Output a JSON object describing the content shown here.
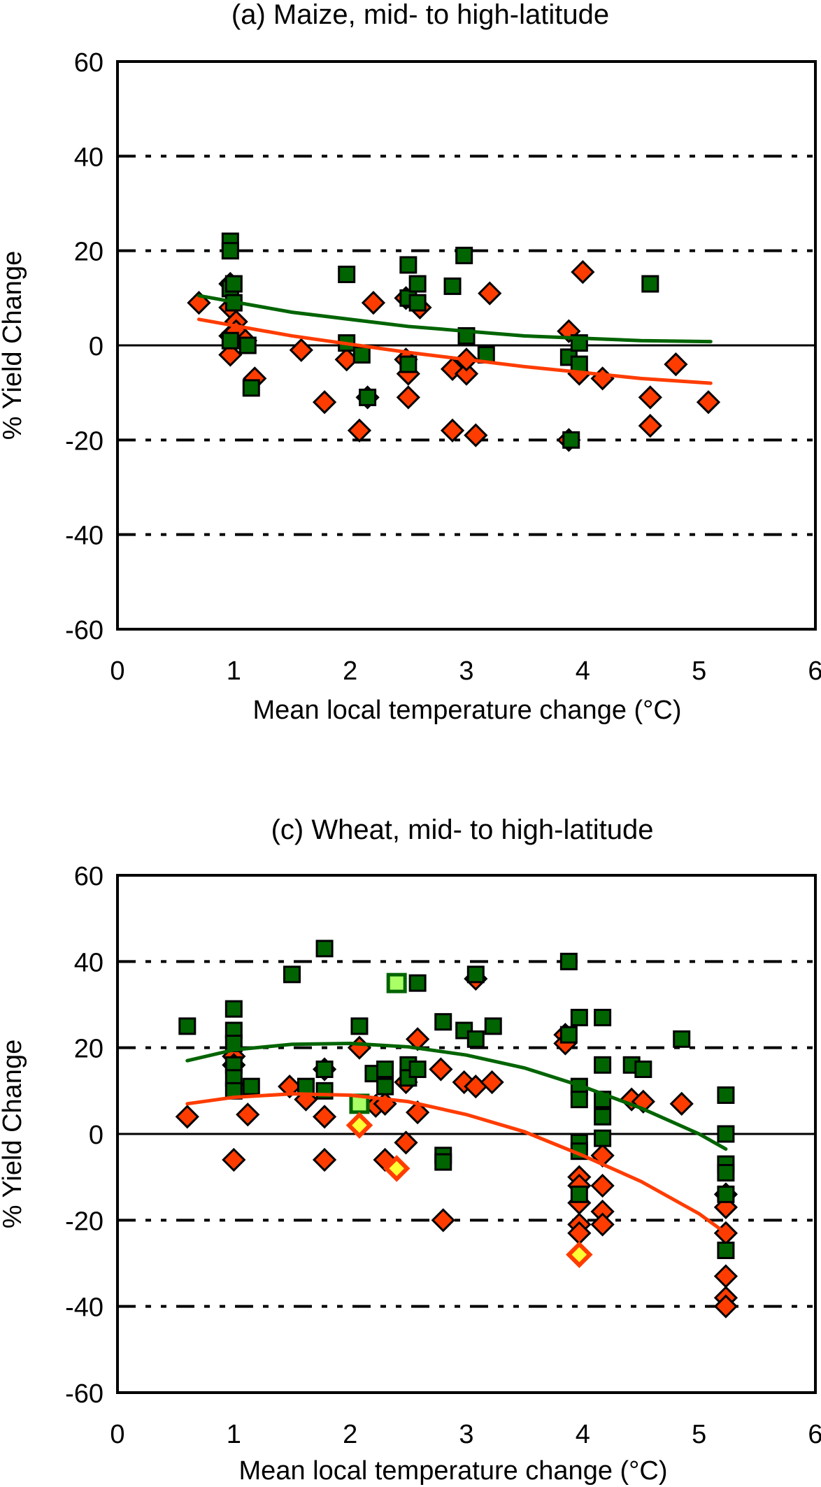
{
  "colors": {
    "optimal_fill": "#FF3C00",
    "adapted_fill": "#006400",
    "marker_stroke": "#000000",
    "highlight_square_fill": "#AAFF66",
    "highlight_square_stroke": "#006400",
    "highlight_diamond_fill": "#FFFF33",
    "highlight_diamond_stroke": "#FF3C00",
    "fit_no_adapt": "#FF3C00",
    "fit_adapt": "#006400"
  },
  "chart_data": [
    {
      "type": "scatter",
      "title": "(a) Maize, mid- to high-latitude",
      "xlabel": "Mean local temperature change (°C)",
      "ylabel": "% Yield Change",
      "xlim": [
        0,
        6
      ],
      "ylim": [
        -60,
        60
      ],
      "xticks": [
        "0",
        "1",
        "2",
        "3",
        "4",
        "5",
        "6"
      ],
      "yticks": [
        "60",
        "40",
        "20",
        "0",
        "-20",
        "-40",
        "-60"
      ],
      "gridlines_dashdot_y": [
        40,
        20,
        -20,
        -40
      ],
      "zero_line": 0,
      "series": [
        {
          "name": "diamonds (no adaptation)",
          "marker": "diamond",
          "points": [
            [
              0.7,
              9
            ],
            [
              0.97,
              13
            ],
            [
              0.97,
              8
            ],
            [
              0.97,
              2
            ],
            [
              0.97,
              -2
            ],
            [
              1.02,
              5
            ],
            [
              1.02,
              3
            ],
            [
              1.1,
              1
            ],
            [
              1.18,
              -7
            ],
            [
              1.58,
              -1
            ],
            [
              1.78,
              -12
            ],
            [
              1.97,
              -3
            ],
            [
              2.08,
              -18
            ],
            [
              2.2,
              9
            ],
            [
              2.15,
              -11
            ],
            [
              2.48,
              10
            ],
            [
              2.48,
              -3
            ],
            [
              2.5,
              -6
            ],
            [
              2.5,
              -11
            ],
            [
              2.6,
              8
            ],
            [
              2.88,
              -5
            ],
            [
              2.88,
              -18
            ],
            [
              3.0,
              -6
            ],
            [
              3.0,
              -3
            ],
            [
              3.08,
              -19
            ],
            [
              3.2,
              11
            ],
            [
              3.88,
              3
            ],
            [
              3.88,
              -20
            ],
            [
              3.97,
              -6
            ],
            [
              4.0,
              15.5
            ],
            [
              4.17,
              -7
            ],
            [
              4.58,
              -11
            ],
            [
              4.58,
              -17
            ],
            [
              4.8,
              -4
            ],
            [
              5.08,
              -12
            ]
          ]
        },
        {
          "name": "squares (with adaptation)",
          "marker": "square",
          "points": [
            [
              0.97,
              22
            ],
            [
              0.97,
              20
            ],
            [
              0.97,
              12
            ],
            [
              1.0,
              13
            ],
            [
              1.0,
              9
            ],
            [
              0.97,
              1
            ],
            [
              1.12,
              0
            ],
            [
              1.15,
              -9
            ],
            [
              1.97,
              15
            ],
            [
              1.97,
              0.5
            ],
            [
              2.1,
              -2
            ],
            [
              2.15,
              -11
            ],
            [
              2.5,
              17
            ],
            [
              2.5,
              10
            ],
            [
              2.5,
              -4
            ],
            [
              2.58,
              13
            ],
            [
              2.58,
              9
            ],
            [
              2.88,
              12.5
            ],
            [
              2.98,
              19
            ],
            [
              3.0,
              2
            ],
            [
              3.17,
              -2
            ],
            [
              3.88,
              -2.5
            ],
            [
              3.9,
              -20
            ],
            [
              3.97,
              0.5
            ],
            [
              3.97,
              -4
            ],
            [
              4.58,
              13
            ]
          ]
        }
      ],
      "fits": [
        {
          "name": "fit no adaptation",
          "x": [
            0.7,
            1.5,
            2.5,
            3.5,
            4.5,
            5.1
          ],
          "y": [
            5.5,
            2,
            -1.5,
            -4.5,
            -7,
            -8
          ]
        },
        {
          "name": "fit with adaptation",
          "x": [
            0.7,
            1.5,
            2.5,
            3.5,
            4.5,
            5.1
          ],
          "y": [
            10.5,
            7,
            4,
            2,
            1,
            0.8
          ]
        }
      ]
    },
    {
      "type": "scatter",
      "title": "(c) Wheat, mid- to high-latitude",
      "xlabel": "Mean local temperature change (°C)",
      "ylabel": "% Yield Change",
      "xlim": [
        0,
        6
      ],
      "ylim": [
        -60,
        60
      ],
      "xticks": [
        "0",
        "1",
        "2",
        "3",
        "4",
        "5",
        "6"
      ],
      "yticks": [
        "60",
        "40",
        "20",
        "0",
        "-20",
        "-40",
        "-60"
      ],
      "gridlines_dashdot_y": [
        40,
        20,
        -20,
        -40
      ],
      "zero_line": 0,
      "series": [
        {
          "name": "diamonds (no adaptation)",
          "marker": "diamond",
          "points": [
            [
              0.6,
              4
            ],
            [
              1.0,
              18
            ],
            [
              1.0,
              16
            ],
            [
              1.0,
              -6
            ],
            [
              1.12,
              4.5
            ],
            [
              1.48,
              11
            ],
            [
              1.62,
              8
            ],
            [
              1.78,
              15
            ],
            [
              1.78,
              4
            ],
            [
              1.78,
              -6
            ],
            [
              2.08,
              20
            ],
            [
              2.22,
              6.5
            ],
            [
              2.3,
              -6
            ],
            [
              2.3,
              7
            ],
            [
              2.48,
              12
            ],
            [
              2.48,
              -2
            ],
            [
              2.58,
              22
            ],
            [
              2.58,
              5
            ],
            [
              2.78,
              15
            ],
            [
              2.8,
              -20
            ],
            [
              2.98,
              12
            ],
            [
              3.08,
              36
            ],
            [
              3.08,
              11
            ],
            [
              3.22,
              12
            ],
            [
              3.85,
              23
            ],
            [
              3.85,
              21
            ],
            [
              3.97,
              -10
            ],
            [
              3.97,
              -12
            ],
            [
              3.97,
              -16
            ],
            [
              3.97,
              -21
            ],
            [
              3.97,
              -23
            ],
            [
              4.17,
              -5
            ],
            [
              4.17,
              -12
            ],
            [
              4.17,
              -18
            ],
            [
              4.17,
              -21
            ],
            [
              4.42,
              8
            ],
            [
              4.52,
              7.5
            ],
            [
              4.85,
              7
            ],
            [
              5.23,
              -14
            ],
            [
              5.23,
              -17
            ],
            [
              5.23,
              -23
            ],
            [
              5.23,
              -33
            ],
            [
              5.23,
              -38
            ],
            [
              5.23,
              -40
            ]
          ]
        },
        {
          "name": "squares (with adaptation)",
          "marker": "square",
          "points": [
            [
              0.6,
              25
            ],
            [
              1.0,
              29
            ],
            [
              1.0,
              24
            ],
            [
              1.0,
              21
            ],
            [
              1.0,
              16
            ],
            [
              1.0,
              13
            ],
            [
              1.0,
              10
            ],
            [
              1.15,
              11
            ],
            [
              1.5,
              37
            ],
            [
              1.62,
              11
            ],
            [
              1.78,
              43
            ],
            [
              1.78,
              15
            ],
            [
              1.78,
              10
            ],
            [
              2.08,
              25
            ],
            [
              2.2,
              14
            ],
            [
              2.3,
              11
            ],
            [
              2.3,
              15
            ],
            [
              2.5,
              16
            ],
            [
              2.5,
              13
            ],
            [
              2.58,
              35
            ],
            [
              2.58,
              15
            ],
            [
              2.8,
              26
            ],
            [
              2.8,
              -5
            ],
            [
              2.8,
              -6.5
            ],
            [
              2.98,
              24
            ],
            [
              3.08,
              37
            ],
            [
              3.08,
              22
            ],
            [
              3.23,
              25
            ],
            [
              3.88,
              40
            ],
            [
              3.88,
              23
            ],
            [
              3.97,
              27
            ],
            [
              3.97,
              11
            ],
            [
              3.97,
              8
            ],
            [
              3.97,
              -2
            ],
            [
              3.97,
              -4
            ],
            [
              3.97,
              -14
            ],
            [
              4.17,
              27
            ],
            [
              4.17,
              16
            ],
            [
              4.17,
              8
            ],
            [
              4.17,
              4
            ],
            [
              4.17,
              -1
            ],
            [
              4.42,
              16
            ],
            [
              4.52,
              15
            ],
            [
              4.85,
              22
            ],
            [
              5.23,
              9
            ],
            [
              5.23,
              0
            ],
            [
              5.23,
              -7
            ],
            [
              5.23,
              -9
            ],
            [
              5.23,
              -14
            ],
            [
              5.23,
              -27
            ]
          ]
        },
        {
          "name": "highlighted squares",
          "marker": "square-highlight",
          "points": [
            [
              2.08,
              7
            ],
            [
              2.4,
              35
            ]
          ]
        },
        {
          "name": "highlighted diamonds",
          "marker": "diamond-highlight",
          "points": [
            [
              2.08,
              2
            ],
            [
              2.4,
              -8
            ],
            [
              3.97,
              -28
            ]
          ]
        }
      ],
      "fits": [
        {
          "name": "fit no adaptation",
          "x": [
            0.6,
            1.0,
            1.5,
            2.0,
            2.5,
            3.0,
            3.5,
            4.0,
            4.5,
            5.0,
            5.23
          ],
          "y": [
            7,
            8.5,
            9.3,
            9,
            7.5,
            4.5,
            0.5,
            -5,
            -11,
            -18.5,
            -23
          ]
        },
        {
          "name": "fit with adaptation",
          "x": [
            0.6,
            1.0,
            1.5,
            2.0,
            2.5,
            3.0,
            3.5,
            4.0,
            4.5,
            5.0,
            5.23
          ],
          "y": [
            17,
            19.5,
            20.8,
            21,
            20.2,
            18.3,
            15.3,
            11,
            6,
            0,
            -3.5
          ]
        }
      ]
    }
  ]
}
